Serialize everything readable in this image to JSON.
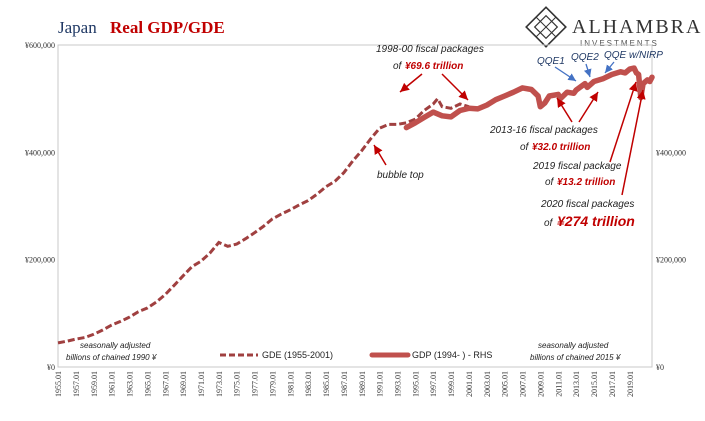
{
  "title": {
    "part1": "Japan",
    "part2": "Real GDP/GDE"
  },
  "logo": {
    "name": "ALHAMBRA",
    "sub": "INVESTMENTS"
  },
  "colors": {
    "gde": "#a04040",
    "gdp": "#c0504d",
    "arrow_red": "#c00000",
    "arrow_blue": "#4472c4",
    "title_blue": "#1f3864"
  },
  "annotations": {
    "pk1998_l1": "1998-00 fiscal packages",
    "pk1998_l2a": "of ",
    "pk1998_l2b": "¥69.6 trillion",
    "bubble": "bubble top",
    "qqe1": "QQE1",
    "qqe2": "QQE2",
    "qqe_nirp": "QQE w/NIRP",
    "pk2013_l1": "2013-16 fiscal packages",
    "pk2013_l2a": "of ",
    "pk2013_l2b": "¥32.0 trillion",
    "pk2019_l1": "2019 fiscal package",
    "pk2019_l2a": "of ",
    "pk2019_l2b": "¥13.2 trillion",
    "pk2020_l1": "2020 fiscal packages",
    "pk2020_l2a": "of ",
    "pk2020_l2b": "¥274 trillion"
  },
  "notes": {
    "left_l1": "seasonally adjusted",
    "left_l2": "billions of chained 1990 ¥",
    "right_l1": "seasonally adjusted",
    "right_l2": "billions of chained 2015 ¥"
  },
  "chart_data": {
    "type": "line",
    "title": "Japan Real GDP/GDE",
    "x_ticks": [
      "1955.01",
      "1957.01",
      "1959.01",
      "1961.01",
      "1963.01",
      "1965.01",
      "1967.01",
      "1969.01",
      "1971.01",
      "1973.01",
      "1975.01",
      "1977.01",
      "1979.01",
      "1981.01",
      "1983.01",
      "1985.01",
      "1987.01",
      "1989.01",
      "1991.01",
      "1993.01",
      "1995.01",
      "1997.01",
      "1999.01",
      "2001.01",
      "2003.01",
      "2005.01",
      "2007.01",
      "2009.01",
      "2011.01",
      "2013.01",
      "2015.01",
      "2017.01",
      "2019.01"
    ],
    "y_left": {
      "ticks": [
        "¥0",
        "¥200,000",
        "¥400,000",
        "¥600,000"
      ],
      "range": [
        0,
        600000
      ]
    },
    "y_right": {
      "ticks": [
        "¥0",
        "¥200,000",
        "¥400,000"
      ],
      "range": [
        0,
        600000
      ]
    },
    "x_range": [
      1955.0,
      2021.5
    ],
    "legend_position": "bottom",
    "series": [
      {
        "name": "GDE (1955-2001)",
        "axis": "left",
        "style": "dashed",
        "points": [
          [
            1955.0,
            45000
          ],
          [
            1956.0,
            48000
          ],
          [
            1957.0,
            52000
          ],
          [
            1958.0,
            55000
          ],
          [
            1959.0,
            61000
          ],
          [
            1960.0,
            69000
          ],
          [
            1961.0,
            78000
          ],
          [
            1962.0,
            85000
          ],
          [
            1963.0,
            93000
          ],
          [
            1964.0,
            103000
          ],
          [
            1965.0,
            110000
          ],
          [
            1966.0,
            121000
          ],
          [
            1967.0,
            135000
          ],
          [
            1968.0,
            152000
          ],
          [
            1969.0,
            170000
          ],
          [
            1970.0,
            187000
          ],
          [
            1971.0,
            197000
          ],
          [
            1972.0,
            212000
          ],
          [
            1973.0,
            232000
          ],
          [
            1974.0,
            225000
          ],
          [
            1975.0,
            229000
          ],
          [
            1976.0,
            239000
          ],
          [
            1977.0,
            250000
          ],
          [
            1978.0,
            262000
          ],
          [
            1979.0,
            276000
          ],
          [
            1980.0,
            285000
          ],
          [
            1981.0,
            293000
          ],
          [
            1982.0,
            302000
          ],
          [
            1983.0,
            310000
          ],
          [
            1984.0,
            322000
          ],
          [
            1985.0,
            336000
          ],
          [
            1986.0,
            346000
          ],
          [
            1987.0,
            362000
          ],
          [
            1988.0,
            384000
          ],
          [
            1989.0,
            403000
          ],
          [
            1990.0,
            425000
          ],
          [
            1991.0,
            445000
          ],
          [
            1992.0,
            452000
          ],
          [
            1993.0,
            452000
          ],
          [
            1994.0,
            455000
          ],
          [
            1995.0,
            462000
          ],
          [
            1996.0,
            478000
          ],
          [
            1997.0,
            490000
          ],
          [
            1997.5,
            500000
          ],
          [
            1998.0,
            485000
          ],
          [
            1999.0,
            482000
          ],
          [
            2000.0,
            490000
          ],
          [
            2001.0,
            485000
          ]
        ]
      },
      {
        "name": "GDP (1994- ) - RHS",
        "axis": "right",
        "style": "solid",
        "points": [
          [
            1994.0,
            446000
          ],
          [
            1995.0,
            455000
          ],
          [
            1996.0,
            465000
          ],
          [
            1997.0,
            475000
          ],
          [
            1998.0,
            468000
          ],
          [
            1999.0,
            466000
          ],
          [
            2000.0,
            478000
          ],
          [
            2001.0,
            482000
          ],
          [
            2002.0,
            481000
          ],
          [
            2003.0,
            488000
          ],
          [
            2004.0,
            498000
          ],
          [
            2005.0,
            505000
          ],
          [
            2006.0,
            512000
          ],
          [
            2007.0,
            520000
          ],
          [
            2008.0,
            517000
          ],
          [
            2008.75,
            505000
          ],
          [
            2009.0,
            485000
          ],
          [
            2009.5,
            492000
          ],
          [
            2010.0,
            505000
          ],
          [
            2011.0,
            508000
          ],
          [
            2011.25,
            500000
          ],
          [
            2012.0,
            512000
          ],
          [
            2012.75,
            510000
          ],
          [
            2013.0,
            516000
          ],
          [
            2014.0,
            528000
          ],
          [
            2014.25,
            521000
          ],
          [
            2015.0,
            532000
          ],
          [
            2016.0,
            537000
          ],
          [
            2017.0,
            545000
          ],
          [
            2018.0,
            550000
          ],
          [
            2018.5,
            548000
          ],
          [
            2019.0,
            555000
          ],
          [
            2019.5,
            557000
          ],
          [
            2019.75,
            548000
          ],
          [
            2020.0,
            545000
          ],
          [
            2020.25,
            502000
          ],
          [
            2020.5,
            528000
          ],
          [
            2021.0,
            535000
          ],
          [
            2021.25,
            532000
          ],
          [
            2021.5,
            540000
          ]
        ]
      }
    ]
  }
}
